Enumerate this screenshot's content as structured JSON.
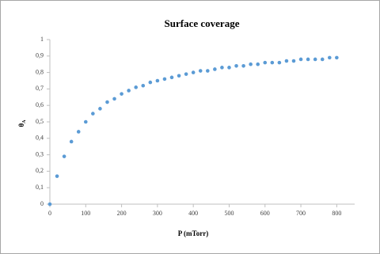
{
  "chart_data": {
    "type": "scatter",
    "title": "Surface coverage",
    "xlabel": "P (mTorr)",
    "ylabel": {
      "symbol": "θ",
      "subscript": "A"
    },
    "color": "#5b9bd5",
    "grid": false,
    "x": [
      0,
      20,
      40,
      60,
      80,
      100,
      120,
      140,
      160,
      180,
      200,
      220,
      240,
      260,
      280,
      300,
      320,
      340,
      360,
      380,
      400,
      420,
      440,
      460,
      480,
      500,
      520,
      540,
      560,
      580,
      600,
      620,
      640,
      660,
      680,
      700,
      720,
      740,
      760,
      780,
      800
    ],
    "values": [
      0,
      0.17,
      0.29,
      0.38,
      0.44,
      0.5,
      0.55,
      0.58,
      0.62,
      0.64,
      0.67,
      0.69,
      0.71,
      0.72,
      0.74,
      0.75,
      0.76,
      0.77,
      0.78,
      0.79,
      0.8,
      0.81,
      0.81,
      0.82,
      0.83,
      0.83,
      0.84,
      0.84,
      0.85,
      0.85,
      0.86,
      0.86,
      0.86,
      0.87,
      0.87,
      0.88,
      0.88,
      0.88,
      0.88,
      0.89,
      0.89
    ],
    "xlim": [
      0,
      850
    ],
    "xticks": [
      0,
      100,
      200,
      300,
      400,
      500,
      600,
      700,
      800
    ],
    "ylim": [
      0,
      1
    ],
    "yticks": [
      0,
      {
        "value": 0.1,
        "label": "0,1"
      },
      {
        "value": 0.2,
        "label": "0,2"
      },
      {
        "value": 0.3,
        "label": "0,3"
      },
      {
        "value": 0.4,
        "label": "0,4"
      },
      {
        "value": 0.5,
        "label": "0,5"
      },
      {
        "value": 0.6,
        "label": "0,6"
      },
      {
        "value": 0.7,
        "label": "0,7"
      },
      {
        "value": 0.8,
        "label": "0,8"
      },
      {
        "value": 0.9,
        "label": "0,9"
      },
      1
    ]
  }
}
